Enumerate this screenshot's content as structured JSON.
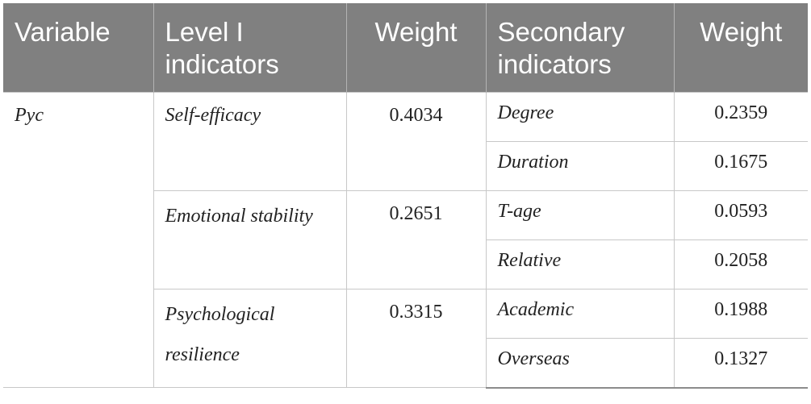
{
  "table": {
    "headers": {
      "variable": "Variable",
      "level1": "Level I indicators",
      "weight1": "Weight",
      "secondary": "Secondary indicators",
      "weight2": "Weight"
    },
    "variable": "Pyc",
    "groups": [
      {
        "level1": "Self-efficacy",
        "weight": "0.4034",
        "secondary": [
          {
            "name": "Degree",
            "weight": "0.2359"
          },
          {
            "name": "Duration",
            "weight": "0.1675"
          }
        ]
      },
      {
        "level1": "Emotional stability",
        "weight": "0.2651",
        "secondary": [
          {
            "name": "T-age",
            "weight": "0.0593"
          },
          {
            "name": "Relative",
            "weight": "0.2058"
          }
        ]
      },
      {
        "level1": "Psychological resilience",
        "weight": "0.3315",
        "secondary": [
          {
            "name": "Academic",
            "weight": "0.1988"
          },
          {
            "name": "Overseas",
            "weight": "0.1327"
          }
        ]
      }
    ]
  }
}
